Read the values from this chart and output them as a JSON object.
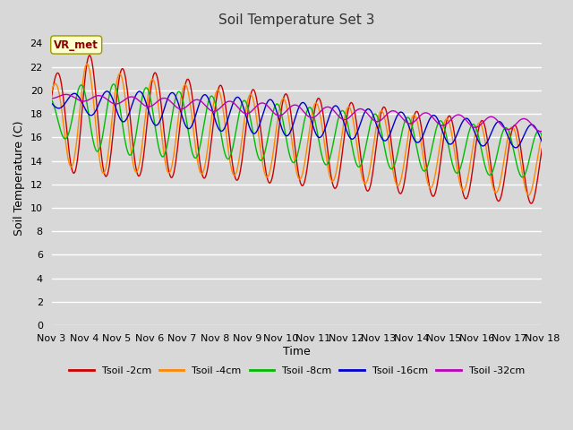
{
  "title": "Soil Temperature Set 3",
  "xlabel": "Time",
  "ylabel": "Soil Temperature (C)",
  "ylim": [
    0,
    25
  ],
  "yticks": [
    0,
    2,
    4,
    6,
    8,
    10,
    12,
    14,
    16,
    18,
    20,
    22,
    24
  ],
  "background_color": "#d8d8d8",
  "plot_bg_color": "#d8d8d8",
  "grid_color": "#ffffff",
  "colors": {
    "2cm": "#cc0000",
    "4cm": "#ff8800",
    "8cm": "#00bb00",
    "16cm": "#0000cc",
    "32cm": "#bb00bb"
  },
  "legend_label": "VR_met",
  "x_tick_labels": [
    "Nov 3",
    "Nov 4",
    "Nov 5",
    "Nov 6",
    "Nov 7",
    "Nov 8",
    "Nov 9",
    "Nov 10",
    "Nov 11",
    "Nov 12",
    "Nov 13",
    "Nov 14",
    "Nov 15",
    "Nov 16",
    "Nov 17",
    "Nov 18"
  ],
  "series_labels": [
    "Tsoil -2cm",
    "Tsoil -4cm",
    "Tsoil -8cm",
    "Tsoil -16cm",
    "Tsoil -32cm"
  ]
}
